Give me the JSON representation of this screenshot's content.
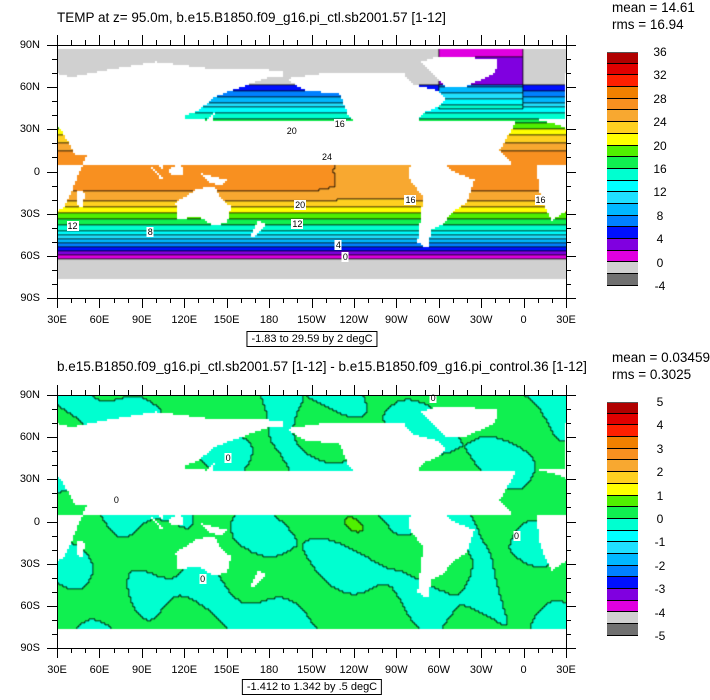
{
  "chart_data": [
    {
      "type": "heatmap",
      "subtype": "filled-contour-map",
      "title": "TEMP at z=  95.0m, b.e15.B1850.f09_g16.pi_ctl.sb2001.57 [1-12]",
      "stats": {
        "mean": "mean = 14.61",
        "rms": "rms = 16.94"
      },
      "info_label": "-1.83 to 29.59 by 2 degC",
      "x_tick_labels": [
        "30E",
        "60E",
        "90E",
        "120E",
        "150E",
        "180",
        "150W",
        "120W",
        "90W",
        "60W",
        "30W",
        "0",
        "30E"
      ],
      "y_tick_labels": [
        "90N",
        "60N",
        "30N",
        "0",
        "30S",
        "60S",
        "90S"
      ],
      "lon_range": [
        30,
        390
      ],
      "lat_range": [
        -90,
        90
      ],
      "levels": {
        "min": -4,
        "max": 36,
        "step": 2
      },
      "colorbar_labels": [
        "36",
        "32",
        "28",
        "24",
        "20",
        "16",
        "12",
        "8",
        "4",
        "0",
        "-4"
      ],
      "data_range": [
        -1.83,
        29.59
      ],
      "units": "degC",
      "contour_labels": [
        {
          "text": "20",
          "lon": 196,
          "lat": 29
        },
        {
          "text": "24",
          "lon": 221,
          "lat": 10
        },
        {
          "text": "16",
          "lon": 230,
          "lat": 34
        },
        {
          "text": "20",
          "lon": 202,
          "lat": -24
        },
        {
          "text": "16",
          "lon": 280,
          "lat": -20
        },
        {
          "text": "12",
          "lon": 41,
          "lat": -39
        },
        {
          "text": "8",
          "lon": 96,
          "lat": -43
        },
        {
          "text": "12",
          "lon": 200,
          "lat": -37
        },
        {
          "text": "4",
          "lon": 229,
          "lat": -52
        },
        {
          "text": "0",
          "lon": 234,
          "lat": -61
        },
        {
          "text": "16",
          "lon": 372,
          "lat": -20
        }
      ]
    },
    {
      "type": "heatmap",
      "subtype": "filled-contour-map",
      "title": "b.e15.B1850.f09_g16.pi_ctl.sb2001.57 [1-12] - b.e15.B1850.f09_g16.pi_control.36 [1-12]",
      "stats": {
        "mean": "mean = 0.03459",
        "rms": "rms = 0.3025"
      },
      "info_label": "-1.412 to 1.342 by .5 degC",
      "x_tick_labels": [
        "30E",
        "60E",
        "90E",
        "120E",
        "150E",
        "180",
        "150W",
        "120W",
        "90W",
        "60W",
        "30W",
        "0",
        "30E"
      ],
      "y_tick_labels": [
        "90N",
        "60N",
        "30N",
        "0",
        "30S",
        "60S",
        "90S"
      ],
      "lon_range": [
        30,
        390
      ],
      "lat_range": [
        -90,
        90
      ],
      "levels": {
        "min": -5,
        "max": 5,
        "step": 0.5
      },
      "colorbar_labels": [
        "5",
        "4",
        "3",
        "2",
        "1",
        "0",
        "-1",
        "-2",
        "-3",
        "-4",
        "-5"
      ],
      "data_range": [
        -1.412,
        1.342
      ],
      "units": "degC",
      "contour_labels": [
        {
          "text": "0",
          "lon": 296,
          "lat": 88
        },
        {
          "text": "0",
          "lon": 151,
          "lat": 45
        },
        {
          "text": "0",
          "lon": 133,
          "lat": -41
        },
        {
          "text": "0",
          "lon": 355,
          "lat": -10
        },
        {
          "text": "0",
          "lon": 72,
          "lat": 15
        }
      ]
    }
  ],
  "colors": [
    "#707070",
    "#d0d0d0",
    "#e000e0",
    "#8000e0",
    "#0010ff",
    "#0080ff",
    "#00b8ff",
    "#20e0ff",
    "#00ffff",
    "#00ffd0",
    "#10f050",
    "#50f000",
    "#ffff00",
    "#ffd020",
    "#f8a830",
    "#f89020",
    "#f08000",
    "#ff2000",
    "#e00000",
    "#b00000"
  ]
}
